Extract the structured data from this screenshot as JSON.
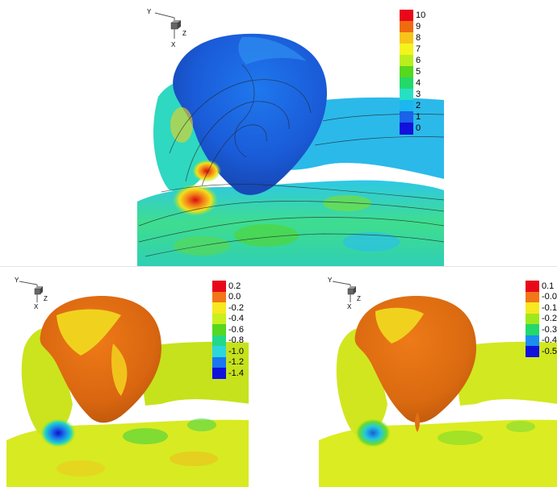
{
  "panels": [
    {
      "id": "top",
      "axis": {
        "y": "Y",
        "z": "Z",
        "x": "X"
      },
      "legend": {
        "ticks": [
          "10",
          "9",
          "8",
          "7",
          "6",
          "5",
          "4",
          "3",
          "2",
          "1",
          "0"
        ],
        "colors": [
          "#e8081a",
          "#f06a10",
          "#f7c41a",
          "#f4f41c",
          "#b9ee1e",
          "#55d81e",
          "#22d96a",
          "#27e0c4",
          "#1ab7f0",
          "#1a62e8",
          "#1111dd"
        ]
      }
    },
    {
      "id": "bottom-left",
      "axis": {
        "y": "Y",
        "z": "Z",
        "x": "X"
      },
      "legend": {
        "ticks": [
          "0.2",
          "0.0",
          "-0.2",
          "-0.4",
          "-0.6",
          "-0.8",
          "-1.0",
          "-1.2",
          "-1.4"
        ],
        "colors": [
          "#e8081a",
          "#f2761a",
          "#f7e81f",
          "#c8f01e",
          "#55d81e",
          "#22d98a",
          "#2ad7dd",
          "#1a77ef",
          "#1111dd"
        ]
      }
    },
    {
      "id": "bottom-right",
      "axis": {
        "y": "Y",
        "z": "Z",
        "x": "X"
      },
      "legend": {
        "ticks": [
          "0.1",
          "-0.0",
          "-0.1",
          "-0.2",
          "-0.3",
          "-0.4",
          "-0.5"
        ],
        "colors": [
          "#e8081a",
          "#f2761a",
          "#f7e81f",
          "#9fe81e",
          "#22d96a",
          "#1a8fef",
          "#1111dd"
        ]
      }
    }
  ]
}
